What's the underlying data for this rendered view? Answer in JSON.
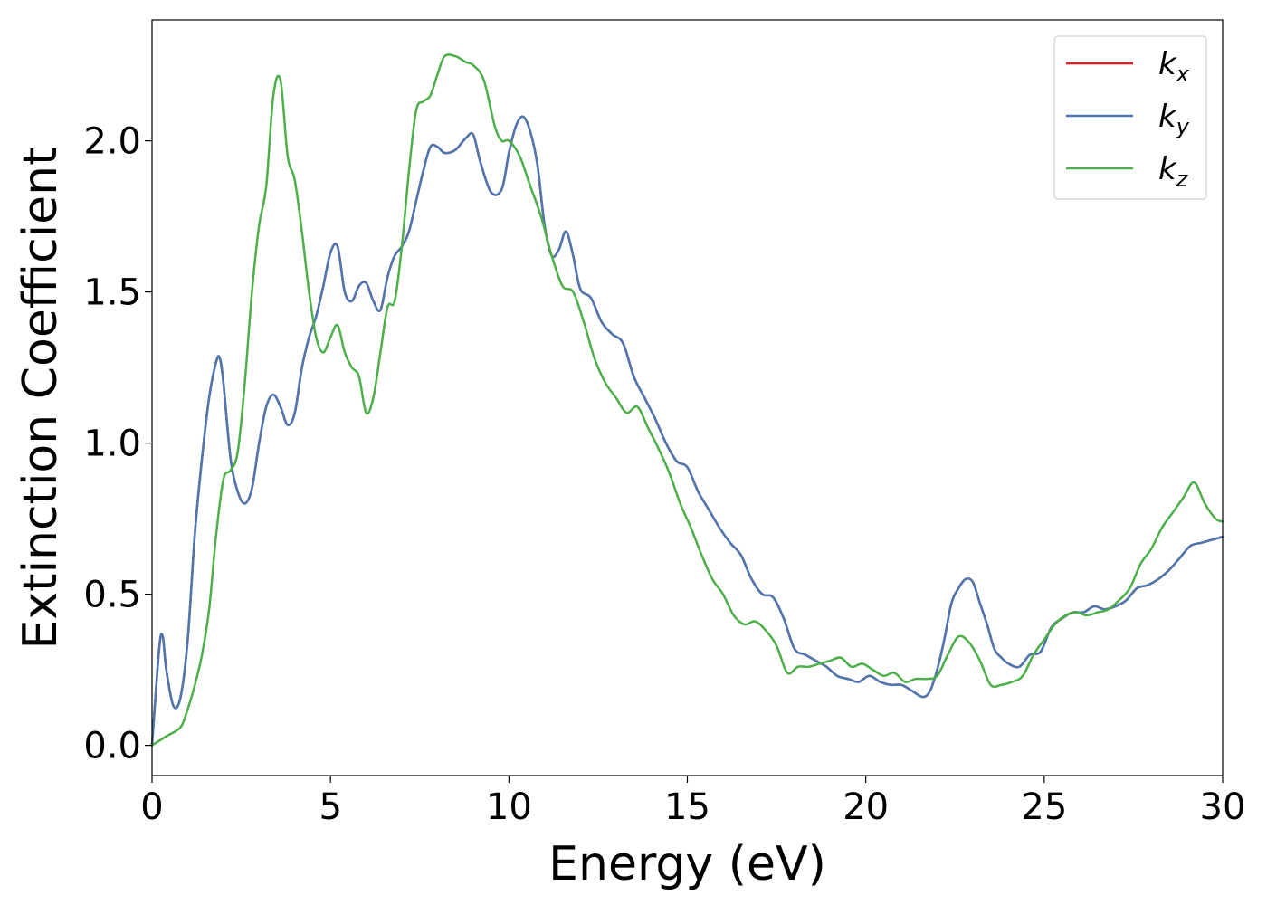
{
  "chart_data": {
    "type": "line",
    "xlabel": "Energy (eV)",
    "ylabel": "Extinction Coefficient",
    "xlim": [
      0,
      30
    ],
    "ylim": [
      -0.1,
      2.4
    ],
    "xticks": [
      0,
      5,
      10,
      15,
      20,
      25,
      30
    ],
    "xtick_labels": [
      "0",
      "5",
      "10",
      "15",
      "20",
      "25",
      "30"
    ],
    "yticks": [
      0.0,
      0.5,
      1.0,
      1.5,
      2.0
    ],
    "ytick_labels": [
      "0.0",
      "0.5",
      "1.0",
      "1.5",
      "2.0"
    ],
    "grid": false,
    "legend_position": "top-right",
    "series": [
      {
        "name": "k_x",
        "legend_base": "k",
        "legend_sub": "x",
        "color": "#e41a1c",
        "x": [
          0,
          0.2,
          0.3,
          0.4,
          0.6,
          0.8,
          1.0,
          1.2,
          1.4,
          1.6,
          1.8,
          1.9,
          2.0,
          2.2,
          2.4,
          2.6,
          2.8,
          3.0,
          3.2,
          3.4,
          3.6,
          3.8,
          4.0,
          4.2,
          4.4,
          4.6,
          4.8,
          5.0,
          5.2,
          5.4,
          5.6,
          5.8,
          6.0,
          6.2,
          6.4,
          6.6,
          6.8,
          7.0,
          7.2,
          7.4,
          7.6,
          7.8,
          8.0,
          8.2,
          8.5,
          8.8,
          9.0,
          9.2,
          9.5,
          9.8,
          10.0,
          10.2,
          10.4,
          10.6,
          10.8,
          11.0,
          11.2,
          11.4,
          11.6,
          11.8,
          12.0,
          12.3,
          12.6,
          12.9,
          13.2,
          13.5,
          13.8,
          14.1,
          14.4,
          14.7,
          15.0,
          15.3,
          15.6,
          15.9,
          16.2,
          16.5,
          16.8,
          17.1,
          17.4,
          17.7,
          18.0,
          18.3,
          18.6,
          18.9,
          19.2,
          19.5,
          19.8,
          20.1,
          20.4,
          20.7,
          21.0,
          21.3,
          21.6,
          21.8,
          22.0,
          22.2,
          22.4,
          22.6,
          22.8,
          23.0,
          23.2,
          23.4,
          23.6,
          23.8,
          24.0,
          24.3,
          24.6,
          24.9,
          25.2,
          25.5,
          25.8,
          26.1,
          26.4,
          26.7,
          27.0,
          27.3,
          27.6,
          27.9,
          28.2,
          28.5,
          28.8,
          29.1,
          29.4,
          29.7,
          30.0
        ],
        "y": [
          0.0,
          0.32,
          0.36,
          0.25,
          0.13,
          0.16,
          0.35,
          0.7,
          0.95,
          1.15,
          1.27,
          1.28,
          1.2,
          0.95,
          0.84,
          0.8,
          0.85,
          1.0,
          1.12,
          1.16,
          1.12,
          1.06,
          1.1,
          1.25,
          1.35,
          1.42,
          1.52,
          1.63,
          1.65,
          1.5,
          1.47,
          1.52,
          1.53,
          1.47,
          1.44,
          1.55,
          1.62,
          1.65,
          1.7,
          1.8,
          1.9,
          1.98,
          1.98,
          1.96,
          1.97,
          2.01,
          2.02,
          1.93,
          1.83,
          1.84,
          1.96,
          2.05,
          2.08,
          2.03,
          1.92,
          1.72,
          1.62,
          1.64,
          1.7,
          1.62,
          1.51,
          1.48,
          1.4,
          1.36,
          1.33,
          1.22,
          1.15,
          1.08,
          1.0,
          0.94,
          0.92,
          0.84,
          0.78,
          0.72,
          0.67,
          0.63,
          0.55,
          0.5,
          0.49,
          0.42,
          0.32,
          0.3,
          0.28,
          0.26,
          0.23,
          0.22,
          0.21,
          0.23,
          0.21,
          0.2,
          0.2,
          0.18,
          0.16,
          0.18,
          0.25,
          0.35,
          0.47,
          0.52,
          0.55,
          0.54,
          0.47,
          0.4,
          0.32,
          0.29,
          0.27,
          0.26,
          0.3,
          0.31,
          0.39,
          0.42,
          0.44,
          0.44,
          0.46,
          0.45,
          0.46,
          0.48,
          0.52,
          0.53,
          0.55,
          0.58,
          0.62,
          0.66,
          0.67,
          0.68,
          0.69
        ]
      },
      {
        "name": "k_y",
        "legend_base": "k",
        "legend_sub": "y",
        "color": "#4a78b0",
        "x": [
          0,
          0.2,
          0.3,
          0.4,
          0.6,
          0.8,
          1.0,
          1.2,
          1.4,
          1.6,
          1.8,
          1.9,
          2.0,
          2.2,
          2.4,
          2.6,
          2.8,
          3.0,
          3.2,
          3.4,
          3.6,
          3.8,
          4.0,
          4.2,
          4.4,
          4.6,
          4.8,
          5.0,
          5.2,
          5.4,
          5.6,
          5.8,
          6.0,
          6.2,
          6.4,
          6.6,
          6.8,
          7.0,
          7.2,
          7.4,
          7.6,
          7.8,
          8.0,
          8.2,
          8.5,
          8.8,
          9.0,
          9.2,
          9.5,
          9.8,
          10.0,
          10.2,
          10.4,
          10.6,
          10.8,
          11.0,
          11.2,
          11.4,
          11.6,
          11.8,
          12.0,
          12.3,
          12.6,
          12.9,
          13.2,
          13.5,
          13.8,
          14.1,
          14.4,
          14.7,
          15.0,
          15.3,
          15.6,
          15.9,
          16.2,
          16.5,
          16.8,
          17.1,
          17.4,
          17.7,
          18.0,
          18.3,
          18.6,
          18.9,
          19.2,
          19.5,
          19.8,
          20.1,
          20.4,
          20.7,
          21.0,
          21.3,
          21.6,
          21.8,
          22.0,
          22.2,
          22.4,
          22.6,
          22.8,
          23.0,
          23.2,
          23.4,
          23.6,
          23.8,
          24.0,
          24.3,
          24.6,
          24.9,
          25.2,
          25.5,
          25.8,
          26.1,
          26.4,
          26.7,
          27.0,
          27.3,
          27.6,
          27.9,
          28.2,
          28.5,
          28.8,
          29.1,
          29.4,
          29.7,
          30.0
        ],
        "y": [
          0.0,
          0.32,
          0.36,
          0.25,
          0.13,
          0.16,
          0.35,
          0.7,
          0.95,
          1.15,
          1.27,
          1.28,
          1.2,
          0.95,
          0.84,
          0.8,
          0.85,
          1.0,
          1.12,
          1.16,
          1.12,
          1.06,
          1.1,
          1.25,
          1.35,
          1.42,
          1.52,
          1.63,
          1.65,
          1.5,
          1.47,
          1.52,
          1.53,
          1.47,
          1.44,
          1.55,
          1.62,
          1.65,
          1.7,
          1.8,
          1.9,
          1.98,
          1.98,
          1.96,
          1.97,
          2.01,
          2.02,
          1.93,
          1.83,
          1.84,
          1.96,
          2.05,
          2.08,
          2.03,
          1.92,
          1.72,
          1.62,
          1.64,
          1.7,
          1.62,
          1.51,
          1.48,
          1.4,
          1.36,
          1.33,
          1.22,
          1.15,
          1.08,
          1.0,
          0.94,
          0.92,
          0.84,
          0.78,
          0.72,
          0.67,
          0.63,
          0.55,
          0.5,
          0.49,
          0.42,
          0.32,
          0.3,
          0.28,
          0.26,
          0.23,
          0.22,
          0.21,
          0.23,
          0.21,
          0.2,
          0.2,
          0.18,
          0.16,
          0.18,
          0.25,
          0.35,
          0.47,
          0.52,
          0.55,
          0.54,
          0.47,
          0.4,
          0.32,
          0.29,
          0.27,
          0.26,
          0.3,
          0.31,
          0.39,
          0.42,
          0.44,
          0.44,
          0.46,
          0.45,
          0.46,
          0.48,
          0.52,
          0.53,
          0.55,
          0.58,
          0.62,
          0.66,
          0.67,
          0.68,
          0.69
        ]
      },
      {
        "name": "k_z",
        "legend_base": "k",
        "legend_sub": "z",
        "color": "#4daf4a",
        "x": [
          0,
          0.4,
          0.8,
          1.0,
          1.2,
          1.4,
          1.6,
          1.8,
          2.0,
          2.2,
          2.4,
          2.6,
          2.8,
          3.0,
          3.2,
          3.4,
          3.6,
          3.8,
          4.0,
          4.2,
          4.4,
          4.6,
          4.8,
          5.0,
          5.2,
          5.4,
          5.6,
          5.8,
          6.0,
          6.2,
          6.4,
          6.6,
          6.8,
          7.0,
          7.2,
          7.4,
          7.6,
          7.8,
          8.0,
          8.2,
          8.5,
          8.8,
          9.0,
          9.3,
          9.6,
          9.8,
          10.0,
          10.3,
          10.6,
          10.9,
          11.2,
          11.5,
          11.8,
          12.1,
          12.4,
          12.7,
          13.0,
          13.3,
          13.6,
          13.9,
          14.2,
          14.5,
          14.8,
          15.1,
          15.4,
          15.7,
          16.0,
          16.3,
          16.6,
          16.9,
          17.2,
          17.5,
          17.8,
          18.1,
          18.4,
          18.7,
          19.0,
          19.3,
          19.6,
          19.9,
          20.2,
          20.5,
          20.8,
          21.1,
          21.4,
          21.7,
          22.0,
          22.3,
          22.6,
          22.9,
          23.2,
          23.5,
          23.8,
          24.1,
          24.4,
          24.7,
          25.0,
          25.3,
          25.6,
          25.9,
          26.2,
          26.5,
          26.8,
          27.1,
          27.4,
          27.7,
          28.0,
          28.3,
          28.6,
          28.9,
          29.2,
          29.5,
          29.8,
          30.0
        ],
        "y": [
          0.0,
          0.03,
          0.06,
          0.12,
          0.2,
          0.3,
          0.45,
          0.7,
          0.88,
          0.91,
          0.97,
          1.2,
          1.5,
          1.72,
          1.85,
          2.15,
          2.2,
          1.95,
          1.87,
          1.7,
          1.5,
          1.35,
          1.3,
          1.35,
          1.39,
          1.3,
          1.25,
          1.22,
          1.1,
          1.15,
          1.3,
          1.45,
          1.47,
          1.65,
          1.9,
          2.1,
          2.13,
          2.15,
          2.22,
          2.28,
          2.28,
          2.26,
          2.25,
          2.2,
          2.05,
          2.0,
          2.0,
          1.95,
          1.85,
          1.75,
          1.62,
          1.52,
          1.5,
          1.4,
          1.28,
          1.2,
          1.15,
          1.1,
          1.12,
          1.05,
          0.98,
          0.9,
          0.8,
          0.72,
          0.63,
          0.55,
          0.5,
          0.43,
          0.4,
          0.41,
          0.38,
          0.33,
          0.24,
          0.26,
          0.26,
          0.27,
          0.28,
          0.29,
          0.26,
          0.27,
          0.25,
          0.23,
          0.24,
          0.21,
          0.22,
          0.22,
          0.23,
          0.3,
          0.36,
          0.34,
          0.28,
          0.2,
          0.2,
          0.21,
          0.23,
          0.3,
          0.35,
          0.4,
          0.43,
          0.44,
          0.43,
          0.44,
          0.45,
          0.48,
          0.52,
          0.6,
          0.65,
          0.72,
          0.77,
          0.82,
          0.87,
          0.8,
          0.75,
          0.74
        ]
      }
    ]
  }
}
